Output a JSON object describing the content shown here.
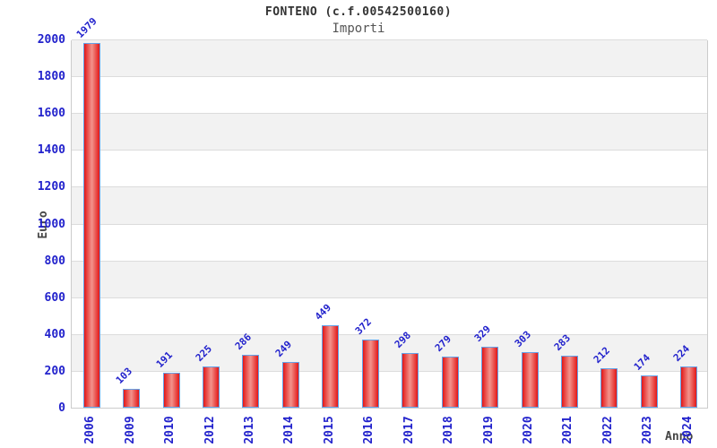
{
  "chart_data": {
    "type": "bar",
    "title": "FONTENO (c.f.00542500160)",
    "subtitle": "Importi",
    "xlabel": "Anno",
    "ylabel": "Euro",
    "categories": [
      "2006",
      "2009",
      "2010",
      "2012",
      "2013",
      "2014",
      "2015",
      "2016",
      "2017",
      "2018",
      "2019",
      "2020",
      "2021",
      "2022",
      "2023",
      "2024"
    ],
    "values": [
      1979,
      103,
      191,
      225,
      286,
      249,
      449,
      372,
      298,
      279,
      329,
      303,
      283,
      212,
      174,
      224
    ],
    "ylim": [
      0,
      2000
    ],
    "ytick_step": 200,
    "grid": true,
    "legend_position": "none",
    "bar_label_rotation_deg": -45,
    "x_tick_rotation_deg": -90
  },
  "colors": {
    "tick_label": "#2222cc",
    "value_label": "#2222cc",
    "axis_title": "#444444",
    "title": "#333333",
    "subtitle": "#555555",
    "bar_edge": "#e21717",
    "bar_center": "#f28f88",
    "bar_border": "#64a2e8",
    "band_gray": "#f2f2f2",
    "gridline": "#dcdcdc",
    "background": "#ffffff"
  }
}
